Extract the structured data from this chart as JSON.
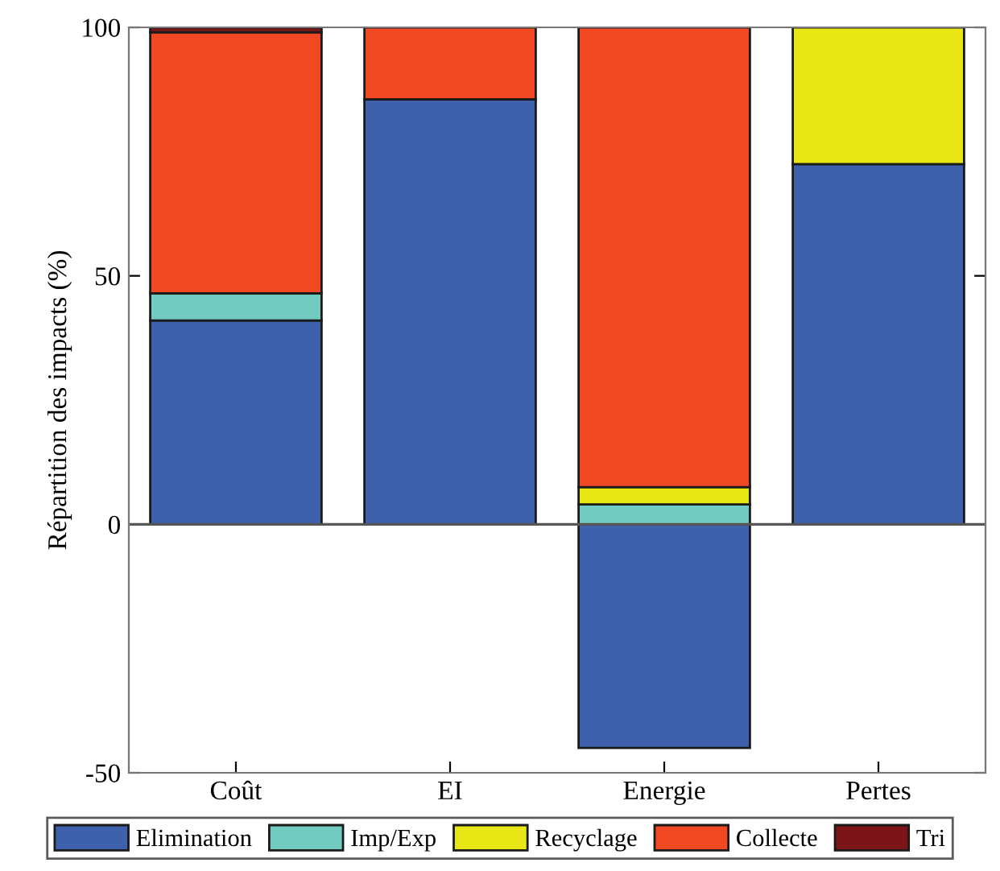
{
  "chart_data": {
    "type": "bar",
    "stacked": true,
    "ylabel": "Répartition des impacts (%)",
    "categories": [
      "Coût",
      "EI",
      "Energie",
      "Pertes"
    ],
    "series": [
      {
        "name": "Elimination",
        "color": "#3f60ab",
        "values": [
          41,
          85.5,
          -45,
          72.5
        ]
      },
      {
        "name": "Imp/Exp",
        "color": "#72cbc0",
        "values": [
          5.5,
          0,
          4,
          0
        ]
      },
      {
        "name": "Recyclage",
        "color": "#e8e614",
        "values": [
          0,
          0,
          3.5,
          27.5
        ]
      },
      {
        "name": "Collecte",
        "color": "#f04822",
        "values": [
          52.5,
          14.5,
          92.5,
          0
        ]
      },
      {
        "name": "Tri",
        "color": "#7b1518",
        "values": [
          1,
          0,
          0,
          0
        ]
      }
    ],
    "ylim": [
      -50,
      100
    ],
    "yticks": [
      -50,
      0,
      50,
      100
    ],
    "ref_lines": [
      {
        "axis": "y",
        "value": 0,
        "color": "#555555"
      }
    ],
    "grid": false,
    "legend": "bottom"
  }
}
